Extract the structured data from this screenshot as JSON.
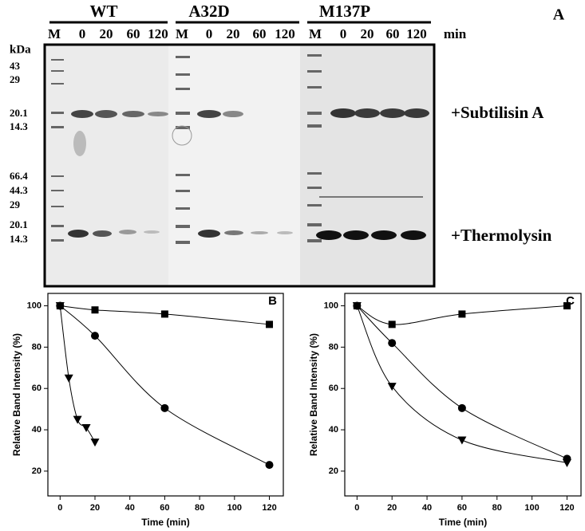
{
  "gel": {
    "panel_label": "A",
    "groups": [
      "WT",
      "A32D",
      "M137P"
    ],
    "lanes": [
      [
        "M",
        "0",
        "20",
        "60",
        "120"
      ],
      [
        "M",
        "0",
        "20",
        "60",
        "120"
      ],
      [
        "M",
        "0",
        "20",
        "60",
        "120"
      ]
    ],
    "time_unit": "min",
    "mw_unit": "kDa",
    "upper_markers": [
      "43",
      "29",
      "20.1",
      "14.3"
    ],
    "lower_markers": [
      "66.4",
      "44.3",
      "29",
      "20.1",
      "14.3"
    ],
    "upper_label": "+Subtilisin A",
    "lower_label": "+Thermolysin"
  },
  "chart_data": [
    {
      "type": "line",
      "panel_label": "B",
      "x_label": "Time (min)",
      "y_label": "Relative Band Intensity (%)",
      "xlim": [
        -7,
        128
      ],
      "ylim": [
        8,
        106
      ],
      "xticks": [
        0,
        20,
        40,
        60,
        80,
        100,
        120
      ],
      "yticks": [
        20,
        40,
        60,
        80,
        100
      ],
      "series": [
        {
          "marker": "square",
          "color": "#000000",
          "x": [
            0,
            20,
            60,
            120
          ],
          "values": [
            100,
            98,
            96,
            91
          ]
        },
        {
          "marker": "circle",
          "color": "#000000",
          "x": [
            0,
            20,
            60,
            120
          ],
          "values": [
            100,
            85.5,
            50.5,
            23
          ]
        },
        {
          "marker": "triangle-down",
          "color": "#000000",
          "x": [
            0,
            5,
            10,
            15,
            20
          ],
          "values": [
            100,
            65,
            45,
            41,
            34
          ]
        }
      ]
    },
    {
      "type": "line",
      "panel_label": "C",
      "x_label": "Time (min)",
      "y_label": "Relative Band Intensity (%)",
      "xlim": [
        -7,
        128
      ],
      "ylim": [
        8,
        106
      ],
      "xticks": [
        0,
        20,
        40,
        60,
        80,
        100,
        120
      ],
      "yticks": [
        20,
        40,
        60,
        80,
        100
      ],
      "series": [
        {
          "marker": "square",
          "color": "#000000",
          "x": [
            0,
            20,
            60,
            120
          ],
          "values": [
            100,
            91,
            96,
            100
          ]
        },
        {
          "marker": "circle",
          "color": "#000000",
          "x": [
            0,
            20,
            60,
            120
          ],
          "values": [
            100,
            82,
            50.5,
            26
          ]
        },
        {
          "marker": "triangle-down",
          "color": "#000000",
          "x": [
            0,
            20,
            60,
            120
          ],
          "values": [
            100,
            61,
            35,
            24
          ]
        }
      ]
    }
  ]
}
